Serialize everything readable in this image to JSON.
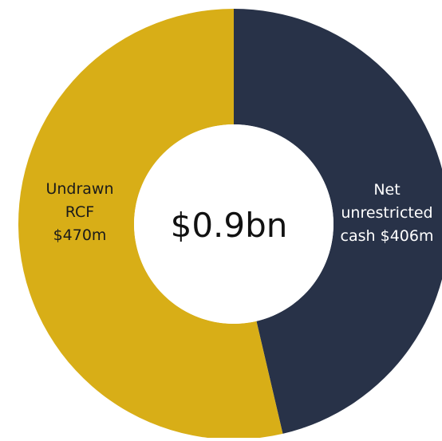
{
  "chart_data": {
    "type": "pie",
    "donut": true,
    "center_label": "$0.9bn",
    "slices": [
      {
        "key": "cash",
        "value": 406,
        "label_lines": [
          "Net",
          "unrestricted",
          "cash $406m"
        ],
        "color": "#283248",
        "text_color": "#ffffff"
      },
      {
        "key": "rcf",
        "value": 470,
        "label_lines": [
          "Undrawn",
          "RCF",
          "$470m"
        ],
        "color": "#d8ae17",
        "text_color": "#1a1a1a"
      }
    ],
    "start": "top, clockwise"
  }
}
